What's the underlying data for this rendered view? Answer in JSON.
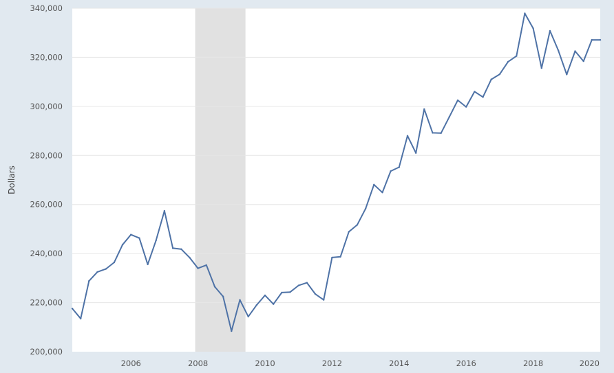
{
  "chart_data": {
    "type": "line",
    "title": "",
    "xlabel": "",
    "ylabel": "Dollars",
    "ylim": [
      200000,
      340000
    ],
    "xlim": [
      2004.25,
      2020.0
    ],
    "y_ticks": [
      200000,
      220000,
      240000,
      260000,
      280000,
      300000,
      320000,
      340000
    ],
    "y_tick_labels": [
      "200,000",
      "220,000",
      "240,000",
      "260,000",
      "280,000",
      "300,000",
      "320,000",
      "340,000"
    ],
    "x_ticks": [
      2006,
      2008,
      2010,
      2012,
      2014,
      2016,
      2018,
      2020
    ],
    "x_tick_labels": [
      "2006",
      "2008",
      "2010",
      "2012",
      "2014",
      "2016",
      "2018",
      "2020"
    ],
    "grid": true,
    "legend": "none",
    "recession_shading": [
      {
        "start": 2007.917,
        "end": 2009.417
      }
    ],
    "colors": {
      "line": "#4e72a6",
      "recession": "#e1e1e1",
      "plot_bg": "#ffffff",
      "page_bg": "#e1e9f0",
      "grid": "#e6e6e6"
    },
    "series": [
      {
        "x": [
          2004.25,
          2004.5,
          2004.75,
          2005.0,
          2005.25,
          2005.5,
          2005.75,
          2006.0,
          2006.25,
          2006.5,
          2006.75,
          2007.0,
          2007.25,
          2007.5,
          2007.75,
          2008.0,
          2008.25,
          2008.5,
          2008.75,
          2009.0,
          2009.25,
          2009.5,
          2009.75,
          2010.0,
          2010.25,
          2010.5,
          2010.75,
          2011.0,
          2011.25,
          2011.5,
          2011.75,
          2012.0,
          2012.25,
          2012.5,
          2012.75,
          2013.0,
          2013.25,
          2013.5,
          2013.75,
          2014.0,
          2014.25,
          2014.5,
          2014.75,
          2015.0,
          2015.25,
          2015.5,
          2015.75,
          2016.0,
          2016.25,
          2016.5,
          2016.75,
          2017.0,
          2017.25,
          2017.5,
          2017.75,
          2018.0,
          2018.25,
          2018.5,
          2018.75,
          2019.0,
          2019.25,
          2019.5,
          2019.75,
          2020.0
        ],
        "values": [
          217600,
          213500,
          228800,
          232500,
          233700,
          236400,
          243600,
          247700,
          246300,
          235600,
          245400,
          257400,
          242200,
          241800,
          238400,
          234000,
          235300,
          226500,
          222500,
          208400,
          221100,
          214300,
          219000,
          223000,
          219400,
          224100,
          224300,
          227000,
          228100,
          223500,
          221100,
          238400,
          238700,
          248900,
          251700,
          258300,
          268100,
          264900,
          273600,
          275200,
          288000,
          281000,
          298900,
          289200,
          289100,
          295800,
          302500,
          299800,
          306000,
          303800,
          311000,
          313100,
          318200,
          320500,
          337900,
          331800,
          315600,
          330800,
          322800,
          313000,
          322500,
          318400,
          327100,
          327100
        ]
      }
    ]
  }
}
